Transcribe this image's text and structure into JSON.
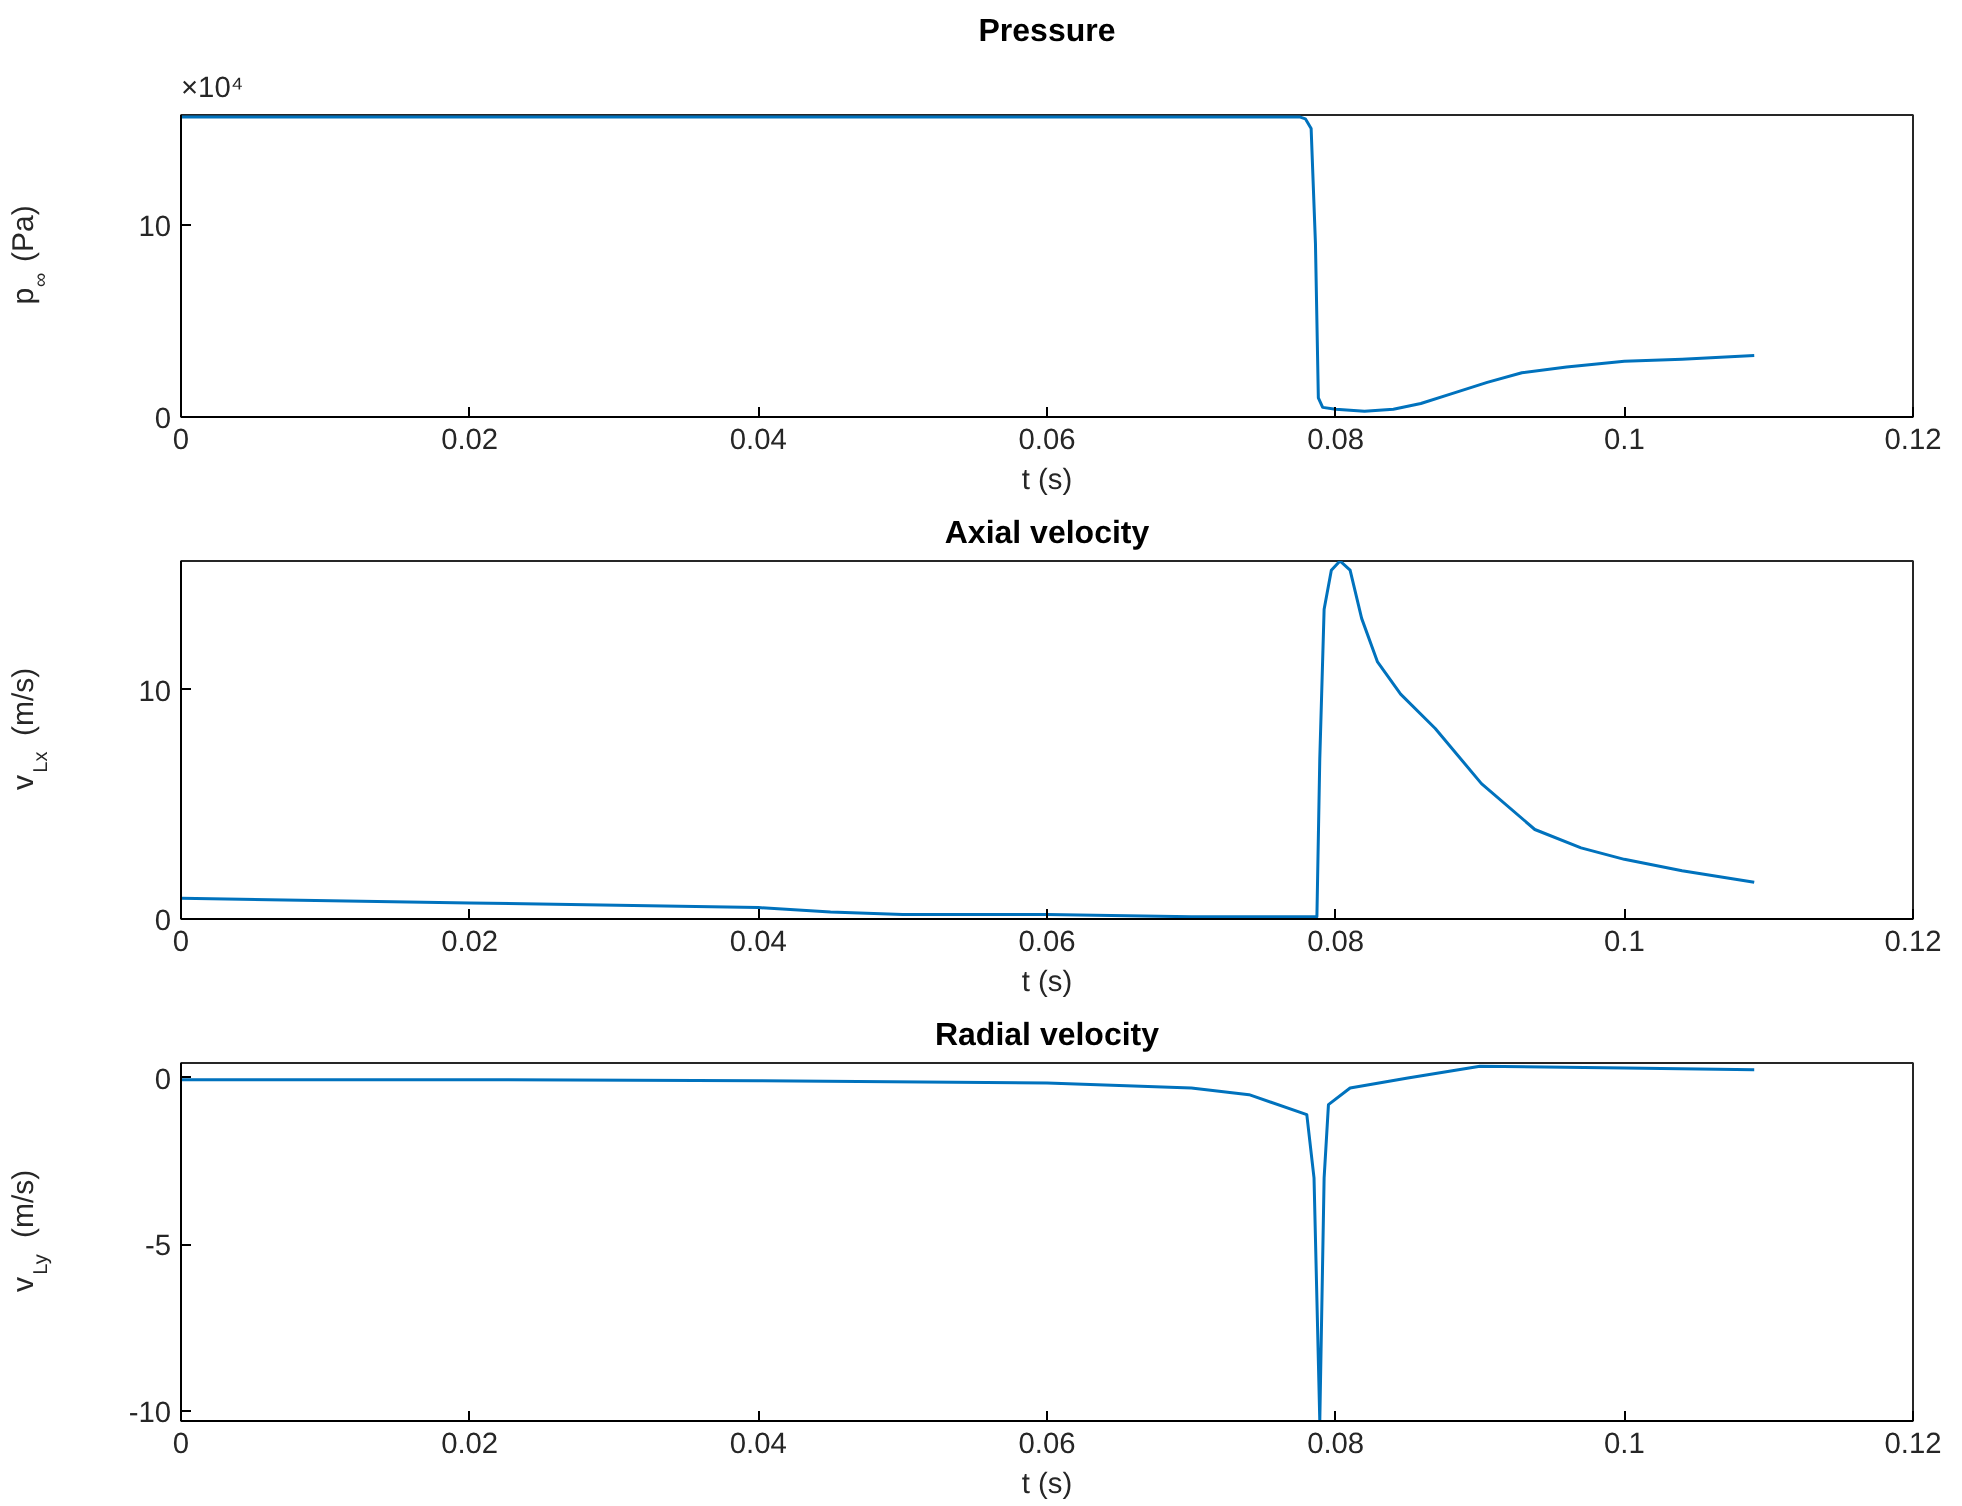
{
  "chart_data": [
    {
      "type": "line",
      "title": "Pressure",
      "xlabel": "t (s)",
      "ylabel": "p$_{∞}$ (Pa)",
      "annotations": [
        "×10⁴"
      ],
      "xlim": [
        0,
        0.12
      ],
      "xticks": [
        0,
        0.02,
        0.04,
        0.06,
        0.08,
        0.1,
        0.12
      ],
      "ylim": [
        0,
        15.7
      ],
      "yticks": [
        0,
        10
      ],
      "grid": false,
      "series": [
        {
          "color": "#0072bd",
          "x": [
            0,
            0.02,
            0.04,
            0.06,
            0.07,
            0.0775,
            0.0779,
            0.0783,
            0.0786,
            0.0788,
            0.0791,
            0.08,
            0.082,
            0.084,
            0.0859,
            0.088,
            0.0905,
            0.0929,
            0.096,
            0.1,
            0.104,
            0.109
          ],
          "values": [
            15.6,
            15.6,
            15.6,
            15.6,
            15.6,
            15.6,
            15.5,
            15.0,
            9.0,
            1.0,
            0.5,
            0.4,
            0.3,
            0.4,
            0.7,
            1.2,
            1.8,
            2.3,
            2.6,
            2.9,
            3.0,
            3.2
          ]
        }
      ]
    },
    {
      "type": "line",
      "title": "Axial velocity",
      "xlabel": "t (s)",
      "ylabel": "v$_{Lx}$ (m/s)",
      "xlim": [
        0,
        0.12
      ],
      "xticks": [
        0,
        0.02,
        0.04,
        0.06,
        0.08,
        0.1,
        0.12
      ],
      "ylim": [
        0,
        15.6
      ],
      "yticks": [
        0,
        10
      ],
      "grid": false,
      "series": [
        {
          "color": "#0072bd",
          "x": [
            0,
            0.02,
            0.04,
            0.045,
            0.05,
            0.06,
            0.07,
            0.078,
            0.0787,
            0.0789,
            0.0792,
            0.0797,
            0.0803,
            0.081,
            0.0818,
            0.0829,
            0.0845,
            0.0869,
            0.0901,
            0.0938,
            0.097,
            0.1,
            0.104,
            0.109
          ],
          "values": [
            0.9,
            0.7,
            0.5,
            0.3,
            0.2,
            0.2,
            0.1,
            0.1,
            0.1,
            7.0,
            13.5,
            15.2,
            15.6,
            15.2,
            13.1,
            11.2,
            9.8,
            8.3,
            5.9,
            3.9,
            3.1,
            2.6,
            2.1,
            1.6
          ]
        }
      ]
    },
    {
      "type": "line",
      "title": "Radial velocity",
      "xlabel": "t (s)",
      "ylabel": "v$_{Ly}$ (m/s)",
      "xlim": [
        0,
        0.12
      ],
      "xticks": [
        0,
        0.02,
        0.04,
        0.06,
        0.08,
        0.1,
        0.12
      ],
      "ylim": [
        -10.3,
        0.45
      ],
      "yticks": [
        -10,
        -5,
        0
      ],
      "grid": false,
      "series": [
        {
          "color": "#0072bd",
          "x": [
            0,
            0.02,
            0.04,
            0.06,
            0.07,
            0.074,
            0.078,
            0.0785,
            0.0789,
            0.0792,
            0.0795,
            0.081,
            0.085,
            0.09,
            0.1,
            0.109
          ],
          "values": [
            -0.05,
            -0.05,
            -0.08,
            -0.15,
            -0.3,
            -0.5,
            -1.1,
            -3.0,
            -10.3,
            -3.0,
            -0.8,
            -0.3,
            0.0,
            0.35,
            0.3,
            0.25
          ]
        }
      ]
    }
  ]
}
